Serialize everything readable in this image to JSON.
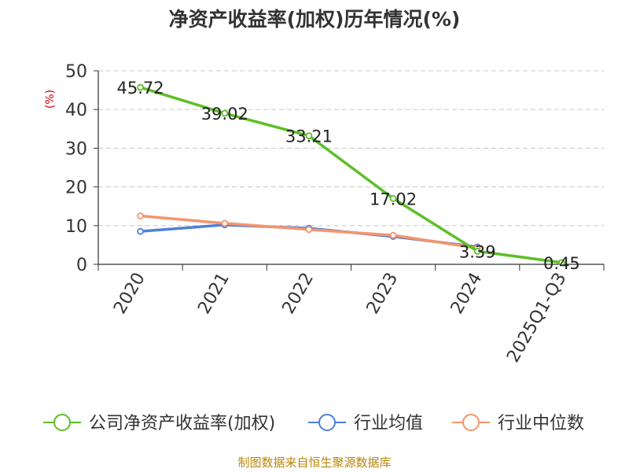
{
  "chart_data": {
    "type": "line",
    "title": "净资产收益率(加权)历年情况(%)",
    "ylabel": "(%)",
    "xlabel": "",
    "ylim": [
      0,
      50
    ],
    "yticks": [
      0,
      10,
      20,
      30,
      40,
      50
    ],
    "grid": true,
    "legend_position": "bottom",
    "categories": [
      "2020",
      "2021",
      "2022",
      "2023",
      "2024",
      "2025Q1-Q3"
    ],
    "series": [
      {
        "name": "公司净资产收益率(加权)",
        "color": "#5cbf26",
        "values": [
          45.72,
          39.02,
          33.21,
          17.02,
          3.39,
          0.45
        ],
        "labels": [
          "45.72",
          "39.02",
          "33.21",
          "17.02",
          "3.39",
          "0.45"
        ]
      },
      {
        "name": "行业均值",
        "color": "#4f7fd9",
        "values": [
          8.5,
          10.2,
          9.3,
          7.2,
          4.5,
          null
        ]
      },
      {
        "name": "行业中位数",
        "color": "#f5956b",
        "values": [
          12.5,
          10.6,
          9.0,
          7.5,
          4.2,
          null
        ]
      }
    ],
    "source": "制图数据来自恒生聚源数据库"
  }
}
